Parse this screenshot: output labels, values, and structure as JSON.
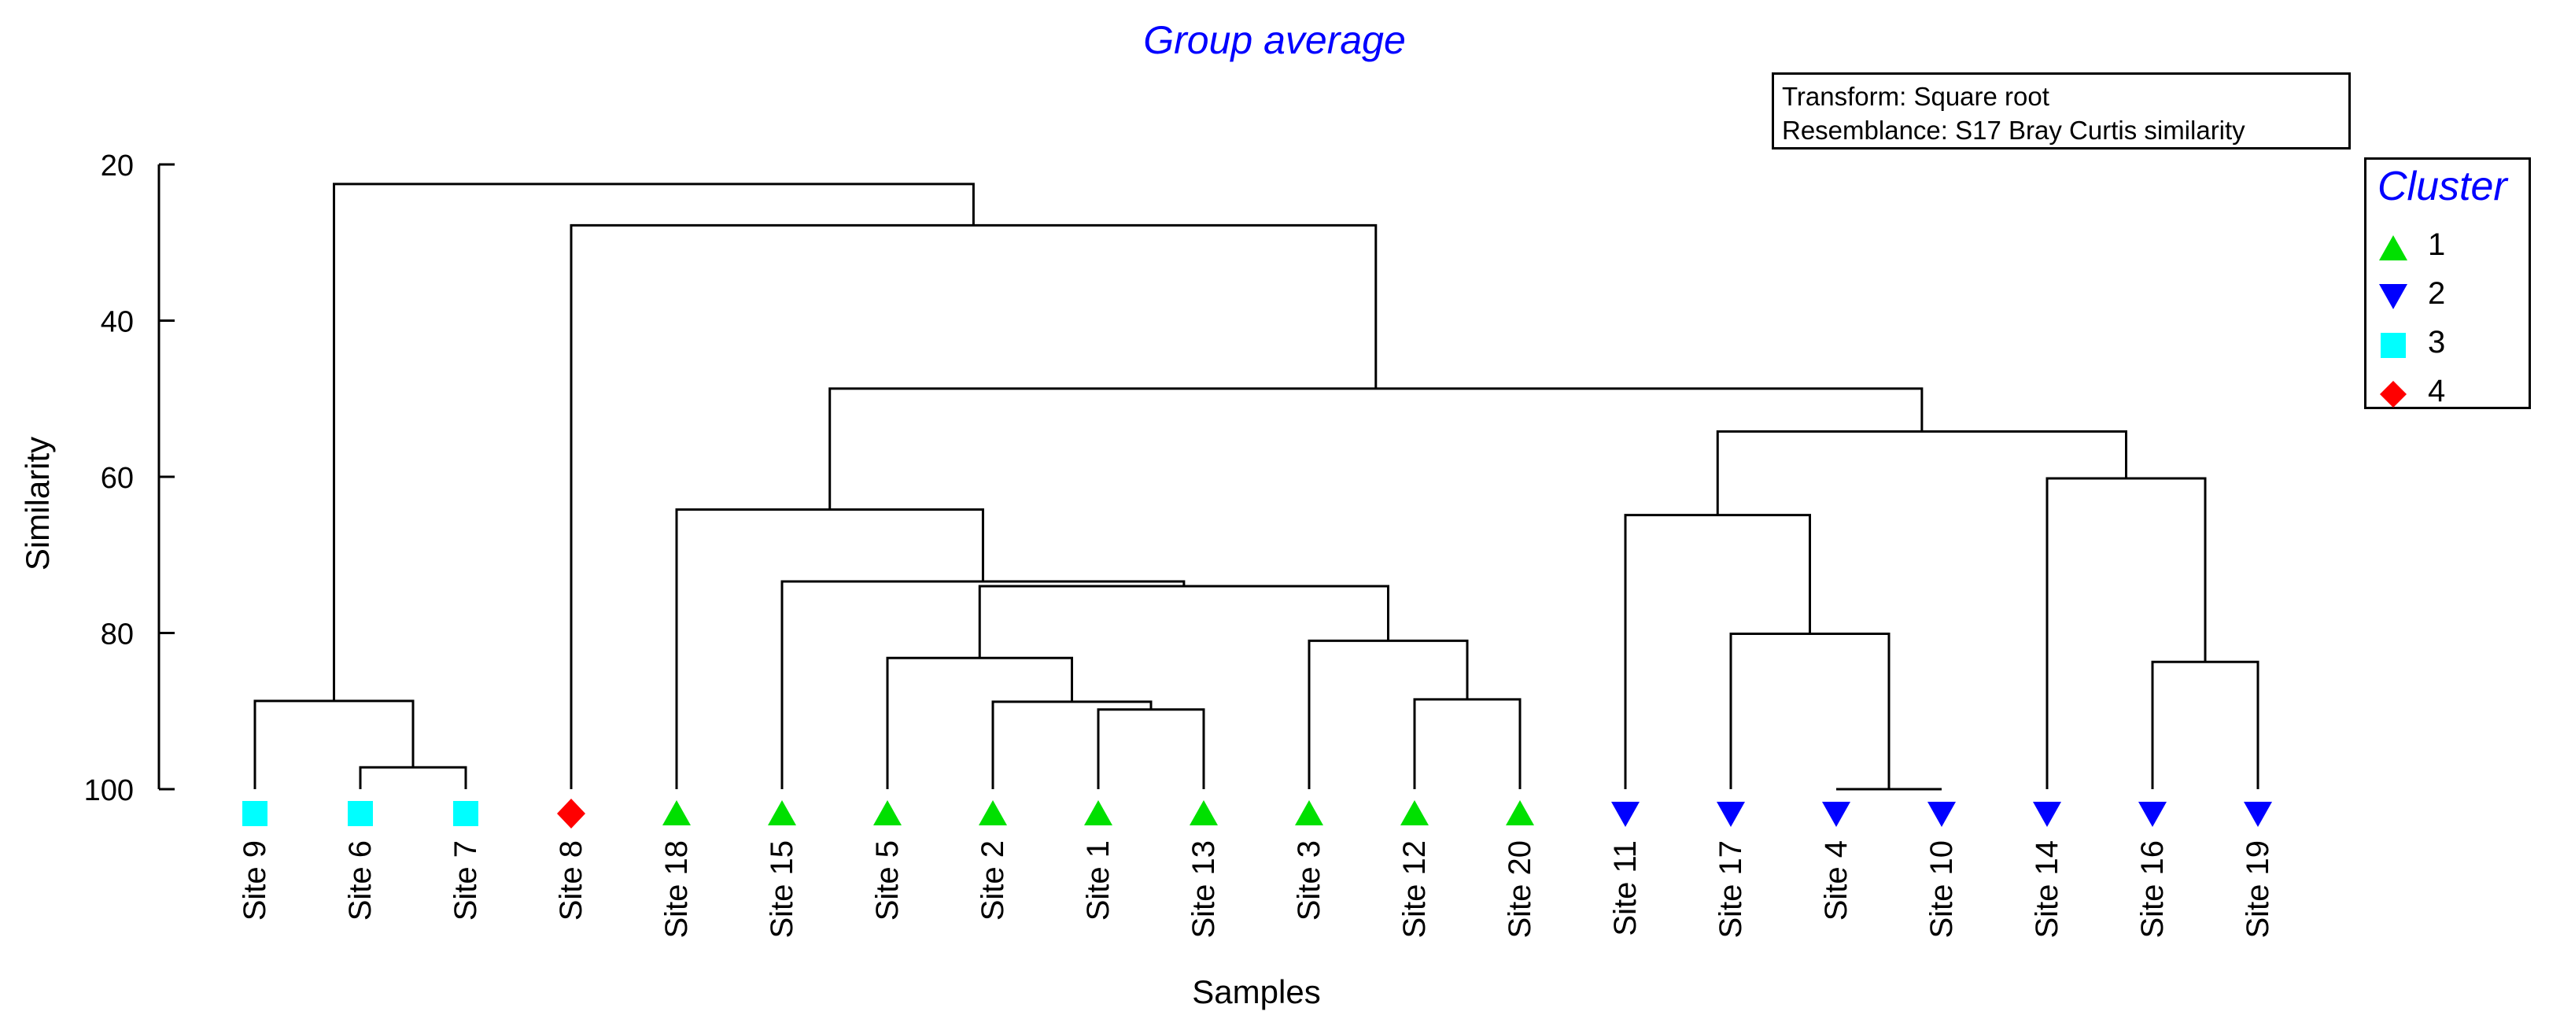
{
  "chart_data": {
    "type": "dendrogram",
    "title": "Group average",
    "xlabel": "Samples",
    "ylabel": "Similarity",
    "ylim": [
      20,
      100
    ],
    "yticks": [
      20,
      40,
      60,
      80,
      100
    ],
    "info": [
      "Transform: Square root",
      "Resemblance: S17 Bray Curtis similarity"
    ],
    "legend": {
      "title": "Cluster",
      "items": [
        {
          "label": "1",
          "marker": "triangle-up",
          "color": "#00e000"
        },
        {
          "label": "2",
          "marker": "triangle-down",
          "color": "#0000ff"
        },
        {
          "label": "3",
          "marker": "square",
          "color": "#00ffff"
        },
        {
          "label": "4",
          "marker": "diamond",
          "color": "#ff0000"
        }
      ]
    },
    "leaves": [
      {
        "label": "Site 9",
        "cluster": "3"
      },
      {
        "label": "Site 6",
        "cluster": "3"
      },
      {
        "label": "Site 7",
        "cluster": "3"
      },
      {
        "label": "Site 8",
        "cluster": "4"
      },
      {
        "label": "Site 18",
        "cluster": "1"
      },
      {
        "label": "Site 15",
        "cluster": "1"
      },
      {
        "label": "Site 5",
        "cluster": "1"
      },
      {
        "label": "Site 2",
        "cluster": "1"
      },
      {
        "label": "Site 1",
        "cluster": "1"
      },
      {
        "label": "Site 13",
        "cluster": "1"
      },
      {
        "label": "Site 3",
        "cluster": "1"
      },
      {
        "label": "Site 12",
        "cluster": "1"
      },
      {
        "label": "Site 20",
        "cluster": "1"
      },
      {
        "label": "Site 11",
        "cluster": "2"
      },
      {
        "label": "Site 17",
        "cluster": "2"
      },
      {
        "label": "Site 4",
        "cluster": "2"
      },
      {
        "label": "Site 10",
        "cluster": "2"
      },
      {
        "label": "Site 14",
        "cluster": "2"
      },
      {
        "label": "Site 16",
        "cluster": "2"
      },
      {
        "label": "Site 19",
        "cluster": "2"
      }
    ],
    "merges": [
      {
        "id": "m1",
        "children": [
          "Site 6",
          "Site 7"
        ],
        "similarity": 97.2
      },
      {
        "id": "m2",
        "children": [
          "Site 9",
          "m1"
        ],
        "similarity": 88.7
      },
      {
        "id": "m3",
        "children": [
          "Site 4",
          "Site 10"
        ],
        "similarity": 100
      },
      {
        "id": "m4",
        "children": [
          "Site 1",
          "Site 13"
        ],
        "similarity": 89.8
      },
      {
        "id": "m5",
        "children": [
          "Site 2",
          "m4"
        ],
        "similarity": 88.8
      },
      {
        "id": "m6",
        "children": [
          "Site 5",
          "m5"
        ],
        "similarity": 83.2
      },
      {
        "id": "m7",
        "children": [
          "Site 12",
          "Site 20"
        ],
        "similarity": 88.5
      },
      {
        "id": "m8",
        "children": [
          "Site 3",
          "m7"
        ],
        "similarity": 81.0
      },
      {
        "id": "m9",
        "children": [
          "m6",
          "m8"
        ],
        "similarity": 74.0
      },
      {
        "id": "m10",
        "children": [
          "Site 15",
          "m9"
        ],
        "similarity": 73.4
      },
      {
        "id": "m11",
        "children": [
          "Site 18",
          "m10"
        ],
        "similarity": 64.2
      },
      {
        "id": "m12",
        "children": [
          "Site 17",
          "m3"
        ],
        "similarity": 80.1
      },
      {
        "id": "m13",
        "children": [
          "Site 11",
          "m12"
        ],
        "similarity": 64.9
      },
      {
        "id": "m14",
        "children": [
          "Site 16",
          "Site 19"
        ],
        "similarity": 83.7
      },
      {
        "id": "m15",
        "children": [
          "Site 14",
          "m14"
        ],
        "similarity": 60.2
      },
      {
        "id": "m16",
        "children": [
          "m13",
          "m15"
        ],
        "similarity": 54.2
      },
      {
        "id": "m17",
        "children": [
          "m11",
          "m16"
        ],
        "similarity": 48.7
      },
      {
        "id": "m18",
        "children": [
          "Site 8",
          "m17"
        ],
        "similarity": 27.8
      },
      {
        "id": "m19",
        "children": [
          "m2",
          "m18"
        ],
        "similarity": 22.5
      }
    ]
  },
  "colors": {
    "title": "#0000ff",
    "legend_title": "#0000ff",
    "lines": "#000000"
  }
}
